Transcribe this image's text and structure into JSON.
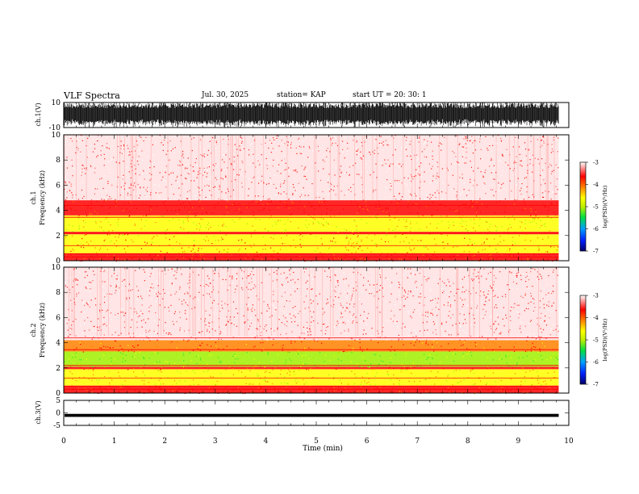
{
  "header": {
    "title": "VLF Spectra",
    "date": "Jul. 30, 2025",
    "station": "station= KAP",
    "start_ut": "start UT =   20: 30: 1"
  },
  "chart_data": {
    "type": "heatmap",
    "title": "VLF Spectra",
    "xlabel": "Time  (min)",
    "xlim": [
      0,
      10
    ],
    "xticks": [
      "0",
      "1",
      "2",
      "3",
      "4",
      "5",
      "6",
      "7",
      "8",
      "9",
      "10"
    ],
    "panels": [
      {
        "id": "ch1-waveform",
        "type": "line",
        "ylabel": "ch.1(V)",
        "ylim": [
          -10,
          10
        ],
        "yticks": [
          "10",
          "-10"
        ],
        "description_signal": "dense broadband waveform saturating near ±10 V"
      },
      {
        "id": "ch1-spectrogram",
        "type": "heatmap",
        "ylabel_top": "ch.1",
        "ylabel": "Frequency  (kHz)",
        "ylim": [
          0,
          10
        ],
        "yticks": [
          "0",
          "2",
          "4",
          "6",
          "8",
          "10"
        ],
        "data_end_min": 9.8,
        "dominant_bands_khz": [
          {
            "from": 0,
            "to": 0.6,
            "level": -4.2
          },
          {
            "from": 0.6,
            "to": 2.1,
            "level": -4.6
          },
          {
            "from": 2.1,
            "to": 2.3,
            "level": -4.0
          },
          {
            "from": 2.3,
            "to": 3.6,
            "level": -4.8
          },
          {
            "from": 3.6,
            "to": 4.8,
            "level": -4.1
          },
          {
            "from": 4.8,
            "to": 10,
            "level": -3.3
          }
        ]
      },
      {
        "id": "ch2-spectrogram",
        "type": "heatmap",
        "ylabel_top": "ch.2",
        "ylabel": "Frequency  (kHz)",
        "ylim": [
          0,
          10
        ],
        "yticks": [
          "0",
          "2",
          "4",
          "6",
          "8",
          "10"
        ],
        "data_end_min": 9.8,
        "dominant_bands_khz": [
          {
            "from": 0,
            "to": 0.6,
            "level": -4.2
          },
          {
            "from": 0.6,
            "to": 1.9,
            "level": -4.7
          },
          {
            "from": 1.9,
            "to": 2.1,
            "level": -4.2
          },
          {
            "from": 2.1,
            "to": 3.3,
            "level": -5.1
          },
          {
            "from": 3.3,
            "to": 4.2,
            "level": -4.3
          },
          {
            "from": 4.2,
            "to": 10,
            "level": -3.3
          }
        ]
      },
      {
        "id": "ch3-waveform",
        "type": "line",
        "ylabel": "ch.3(V)",
        "ylim": [
          -5,
          5
        ],
        "yticks": [
          "5",
          "0",
          "-5"
        ],
        "description_signal": "nearly constant band near -1 V"
      }
    ],
    "colorbar": {
      "label": "log(PSD)(V²/Hz)",
      "range": [
        -7,
        -3
      ],
      "ticks": [
        "-3",
        "-4",
        "-5",
        "-6",
        "-7"
      ],
      "colors": [
        "#0000a0",
        "#0060ff",
        "#00c0ff",
        "#00e060",
        "#a0f000",
        "#ffff00",
        "#ff8000",
        "#ff0000",
        "#ffffff"
      ]
    }
  }
}
